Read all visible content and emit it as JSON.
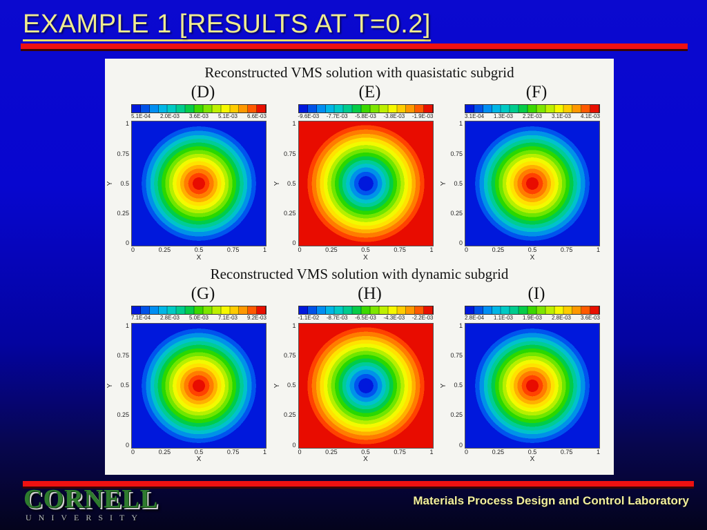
{
  "slide": {
    "title": "EXAMPLE 1 [RESULTS AT T=0.2]",
    "footer": "Materials Process Design and Control Laboratory",
    "logo": {
      "name": "CORNELL",
      "subname": "UNIVERSITY"
    }
  },
  "axes": {
    "xlabel": "X",
    "ylabel": "Y",
    "x_ticks": [
      "0",
      "0.25",
      "0.5",
      "0.75",
      "1"
    ],
    "y_ticks": [
      "1",
      "0.75",
      "0.5",
      "0.25",
      "0"
    ]
  },
  "panels": [
    {
      "title": "Reconstructed VMS solution with quasistatic subgrid",
      "plots": [
        {
          "label": "(D)",
          "polarity": "pos",
          "cticks": [
            "5.1E-04",
            "2.0E-03",
            "3.6E-03",
            "5.1E-03",
            "6.6E-03"
          ]
        },
        {
          "label": "(E)",
          "polarity": "neg",
          "cticks": [
            "-9.6E-03",
            "-7.7E-03",
            "-5.8E-03",
            "-3.8E-03",
            "-1.9E-03"
          ]
        },
        {
          "label": "(F)",
          "polarity": "pos",
          "cticks": [
            "3.1E-04",
            "1.3E-03",
            "2.2E-03",
            "3.1E-03",
            "4.1E-03"
          ]
        }
      ]
    },
    {
      "title": "Reconstructed VMS solution with dynamic subgrid",
      "plots": [
        {
          "label": "(G)",
          "polarity": "pos",
          "cticks": [
            "7.1E-04",
            "2.8E-03",
            "5.0E-03",
            "7.1E-03",
            "9.2E-03"
          ]
        },
        {
          "label": "(H)",
          "polarity": "neg",
          "cticks": [
            "-1.1E-02",
            "-8.7E-03",
            "-6.5E-03",
            "-4.3E-03",
            "-2.2E-03"
          ]
        },
        {
          "label": "(I)",
          "polarity": "pos",
          "cticks": [
            "2.8E-04",
            "1.1E-03",
            "1.9E-03",
            "2.8E-03",
            "3.6E-03"
          ]
        }
      ]
    }
  ],
  "colors": {
    "background_top": "#0b09cf",
    "background_bottom": "#04031c",
    "accent_bar_red": "#ee1111",
    "title_text": "#efec8f",
    "footer_text": "#f2ef9c",
    "panel_background": "#f5f5f1",
    "logo_green": "#2e7b2e"
  },
  "chart_data": [
    {
      "type": "heatmap",
      "subtype": "filled-contour",
      "title": "(D)",
      "group": "Reconstructed VMS solution with quasistatic subgrid",
      "xlabel": "X",
      "ylabel": "Y",
      "xlim": [
        0,
        1
      ],
      "ylim": [
        0,
        1
      ],
      "x_ticks": [
        0,
        0.25,
        0.5,
        0.75,
        1
      ],
      "y_ticks": [
        0,
        0.25,
        0.5,
        0.75,
        1
      ],
      "colorbar_ticks": [
        0.00051,
        0.002,
        0.0036,
        0.0051,
        0.0066
      ],
      "colormap": "rainbow blue-to-red, ~15 discrete bands, horizontal colorbar above plot",
      "pattern": "minimum (blue) along all boundaries rising to maximum (red) at center (0.5, 0.5) in concentric rounded-square contour bands"
    },
    {
      "type": "heatmap",
      "subtype": "filled-contour",
      "title": "(E)",
      "group": "Reconstructed VMS solution with quasistatic subgrid",
      "xlabel": "X",
      "ylabel": "Y",
      "xlim": [
        0,
        1
      ],
      "ylim": [
        0,
        1
      ],
      "x_ticks": [
        0,
        0.25,
        0.5,
        0.75,
        1
      ],
      "y_ticks": [
        0,
        0.25,
        0.5,
        0.75,
        1
      ],
      "colorbar_ticks": [
        -0.0096,
        -0.0077,
        -0.0058,
        -0.0038,
        -0.0019
      ],
      "colormap": "rainbow blue-to-red, ~15 discrete bands, horizontal colorbar above plot",
      "pattern": "maximum (red) along all boundaries falling to minimum (deep blue) at center (0.5, 0.5) in concentric rounded-square contour bands"
    },
    {
      "type": "heatmap",
      "subtype": "filled-contour",
      "title": "(F)",
      "group": "Reconstructed VMS solution with quasistatic subgrid",
      "xlabel": "X",
      "ylabel": "Y",
      "xlim": [
        0,
        1
      ],
      "ylim": [
        0,
        1
      ],
      "x_ticks": [
        0,
        0.25,
        0.5,
        0.75,
        1
      ],
      "y_ticks": [
        0,
        0.25,
        0.5,
        0.75,
        1
      ],
      "colorbar_ticks": [
        0.00031,
        0.0013,
        0.0022,
        0.0031,
        0.0041
      ],
      "colormap": "rainbow blue-to-red, ~15 discrete bands, horizontal colorbar above plot",
      "pattern": "minimum (blue) along all boundaries rising to maximum (red) at center (0.5, 0.5) in concentric rounded-square contour bands"
    },
    {
      "type": "heatmap",
      "subtype": "filled-contour",
      "title": "(G)",
      "group": "Reconstructed VMS solution with dynamic subgrid",
      "xlabel": "X",
      "ylabel": "Y",
      "xlim": [
        0,
        1
      ],
      "ylim": [
        0,
        1
      ],
      "x_ticks": [
        0,
        0.25,
        0.5,
        0.75,
        1
      ],
      "y_ticks": [
        0,
        0.25,
        0.5,
        0.75,
        1
      ],
      "colorbar_ticks": [
        0.00071,
        0.0028,
        0.005,
        0.0071,
        0.0092
      ],
      "colormap": "rainbow blue-to-red, ~15 discrete bands, horizontal colorbar above plot",
      "pattern": "minimum (blue) along all boundaries rising to maximum (red) at center (0.5, 0.5) in concentric rounded-square contour bands"
    },
    {
      "type": "heatmap",
      "subtype": "filled-contour",
      "title": "(H)",
      "group": "Reconstructed VMS solution with dynamic subgrid",
      "xlabel": "X",
      "ylabel": "Y",
      "xlim": [
        0,
        1
      ],
      "ylim": [
        0,
        1
      ],
      "x_ticks": [
        0,
        0.25,
        0.5,
        0.75,
        1
      ],
      "y_ticks": [
        0,
        0.25,
        0.5,
        0.75,
        1
      ],
      "colorbar_ticks": [
        -0.011,
        -0.0087,
        -0.0065,
        -0.0043,
        -0.0022
      ],
      "colormap": "rainbow blue-to-red, ~15 discrete bands, horizontal colorbar above plot",
      "pattern": "maximum (red) along all boundaries falling to minimum (deep blue) at center (0.5, 0.5) in concentric rounded-square contour bands"
    },
    {
      "type": "heatmap",
      "subtype": "filled-contour",
      "title": "(I)",
      "group": "Reconstructed VMS solution with dynamic subgrid",
      "xlabel": "X",
      "ylabel": "Y",
      "xlim": [
        0,
        1
      ],
      "ylim": [
        0,
        1
      ],
      "x_ticks": [
        0,
        0.25,
        0.5,
        0.75,
        1
      ],
      "y_ticks": [
        0,
        0.25,
        0.5,
        0.75,
        1
      ],
      "colorbar_ticks": [
        0.00028,
        0.0011,
        0.0019,
        0.0028,
        0.0036
      ],
      "colormap": "rainbow blue-to-red, ~15 discrete bands, horizontal colorbar above plot",
      "pattern": "minimum (blue) along all boundaries rising to maximum (red) at center (0.5, 0.5) in concentric rounded-square contour bands"
    }
  ]
}
